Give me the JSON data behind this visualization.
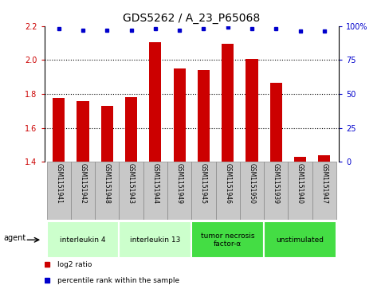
{
  "title": "GDS5262 / A_23_P65068",
  "samples": [
    "GSM1151941",
    "GSM1151942",
    "GSM1151948",
    "GSM1151943",
    "GSM1151944",
    "GSM1151949",
    "GSM1151945",
    "GSM1151946",
    "GSM1151950",
    "GSM1151939",
    "GSM1151940",
    "GSM1151947"
  ],
  "log2_values": [
    1.775,
    1.76,
    1.73,
    1.78,
    2.105,
    1.95,
    1.94,
    2.095,
    2.005,
    1.865,
    1.43,
    1.44
  ],
  "percentile_values": [
    98,
    97,
    97,
    97,
    98,
    97,
    98,
    99,
    98,
    98,
    96,
    96
  ],
  "bar_color": "#cc0000",
  "dot_color": "#0000cc",
  "ylim_left": [
    1.4,
    2.2
  ],
  "ylim_right": [
    0,
    100
  ],
  "yticks_left": [
    1.4,
    1.6,
    1.8,
    2.0,
    2.2
  ],
  "yticks_right": [
    0,
    25,
    50,
    75,
    100
  ],
  "groups": [
    {
      "label": "interleukin 4",
      "start": 0,
      "end": 3,
      "color": "#ccffcc"
    },
    {
      "label": "interleukin 13",
      "start": 3,
      "end": 6,
      "color": "#ccffcc"
    },
    {
      "label": "tumor necrosis\nfactor-α",
      "start": 6,
      "end": 9,
      "color": "#44dd44"
    },
    {
      "label": "unstimulated",
      "start": 9,
      "end": 12,
      "color": "#44dd44"
    }
  ],
  "legend_log2_label": "log2 ratio",
  "legend_pct_label": "percentile rank within the sample",
  "agent_label": "agent",
  "background_color": "#ffffff",
  "left_tick_color": "#cc0000",
  "right_tick_color": "#0000cc",
  "title_fontsize": 10,
  "tick_fontsize": 7,
  "bar_width": 0.5,
  "sample_box_color": "#c8c8c8",
  "sample_box_border": "#888888",
  "dotted_line_color": "#000000",
  "right_axis_label_100pct": "100%"
}
